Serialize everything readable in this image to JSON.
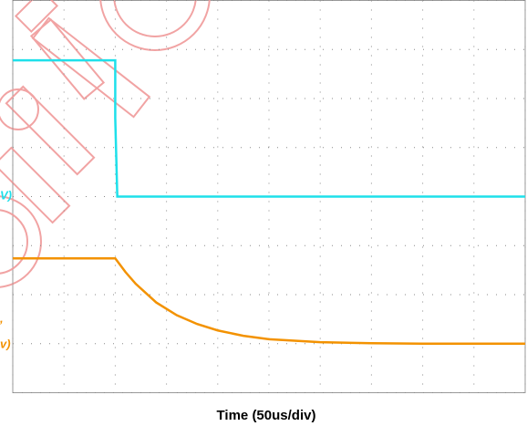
{
  "chart_data": {
    "type": "line",
    "x_label": "Time (50us/div)",
    "xlim": [
      0,
      500
    ],
    "xticks": [
      0,
      50,
      100,
      150,
      200,
      250,
      300,
      350,
      400,
      450,
      500
    ],
    "ylim": [
      0,
      8
    ],
    "yticks": [
      0,
      1,
      2,
      3,
      4,
      5,
      6,
      7,
      8
    ],
    "grid": true,
    "series": [
      {
        "color": "#1ee0ea",
        "x": [
          0,
          100,
          100,
          102,
          500
        ],
        "values": [
          6.78,
          6.78,
          5.6,
          4.0,
          4.0
        ]
      },
      {
        "color": "#f39200",
        "x": [
          0,
          100,
          110,
          120,
          140,
          160,
          180,
          200,
          225,
          250,
          300,
          350,
          400,
          450,
          500
        ],
        "values": [
          2.74,
          2.74,
          2.46,
          2.22,
          1.84,
          1.58,
          1.4,
          1.27,
          1.16,
          1.09,
          1.03,
          1.01,
          1.0,
          1.0,
          1.0
        ]
      }
    ],
    "annotations": [
      {
        "text": "V)",
        "color": "#1ee0ea"
      },
      {
        "text": ",",
        "color": "#f39200"
      },
      {
        "text": "v)",
        "color": "#f39200"
      }
    ]
  }
}
